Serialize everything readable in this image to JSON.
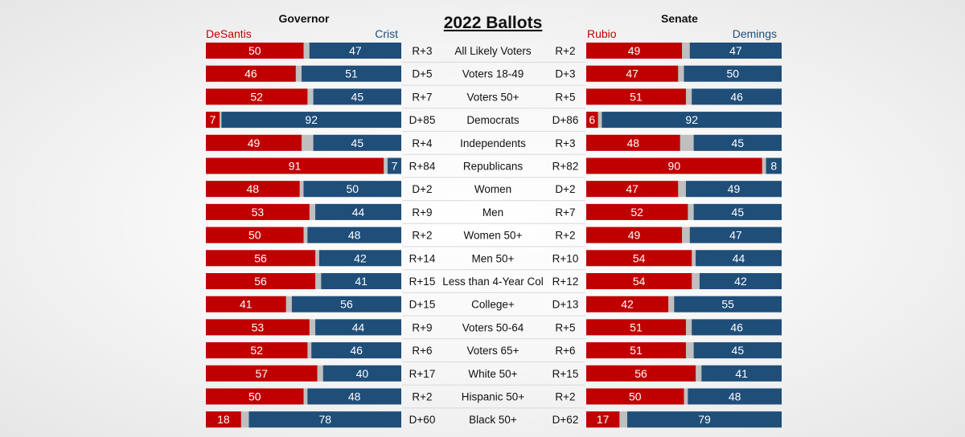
{
  "chart_data": {
    "type": "bar",
    "title": "2022 Ballots",
    "colors": {
      "republican": "#c00000",
      "democrat": "#1f4e79",
      "undecided": "#bfbfbf"
    },
    "categories": [
      "All Likely Voters",
      "Voters 18-49",
      "Voters 50+",
      "Democrats",
      "Independents",
      "Republicans",
      "Women",
      "Men",
      "Women 50+",
      "Men 50+",
      "Less than 4-Year Col",
      "College+",
      "Voters 50-64",
      "Voters 65+",
      "White 50+",
      "Hispanic 50+",
      "Black 50+"
    ],
    "governor": {
      "header": "Governor",
      "rep_name": "DeSantis",
      "dem_name": "Crist",
      "series": [
        {
          "name": "DeSantis",
          "values": [
            50,
            46,
            52,
            7,
            49,
            91,
            48,
            53,
            50,
            56,
            56,
            41,
            53,
            52,
            57,
            50,
            18
          ]
        },
        {
          "name": "Crist",
          "values": [
            47,
            51,
            45,
            92,
            45,
            7,
            50,
            44,
            48,
            42,
            41,
            56,
            44,
            46,
            40,
            48,
            78
          ]
        }
      ],
      "margins": [
        "R+3",
        "D+5",
        "R+7",
        "D+85",
        "R+4",
        "R+84",
        "D+2",
        "R+9",
        "R+2",
        "R+14",
        "R+15",
        "D+15",
        "R+9",
        "R+6",
        "R+17",
        "R+2",
        "D+60"
      ]
    },
    "senate": {
      "header": "Senate",
      "rep_name": "Rubio",
      "dem_name": "Demings",
      "series": [
        {
          "name": "Rubio",
          "values": [
            49,
            47,
            51,
            6,
            48,
            90,
            47,
            52,
            49,
            54,
            54,
            42,
            51,
            51,
            56,
            50,
            17
          ]
        },
        {
          "name": "Demings",
          "values": [
            47,
            50,
            46,
            92,
            45,
            8,
            49,
            45,
            47,
            44,
            42,
            55,
            46,
            45,
            41,
            48,
            79
          ]
        }
      ],
      "margins": [
        "R+2",
        "D+3",
        "R+5",
        "D+86",
        "R+3",
        "R+82",
        "D+2",
        "R+7",
        "R+2",
        "R+10",
        "R+12",
        "D+13",
        "R+5",
        "R+6",
        "R+15",
        "R+2",
        "D+62"
      ]
    }
  }
}
